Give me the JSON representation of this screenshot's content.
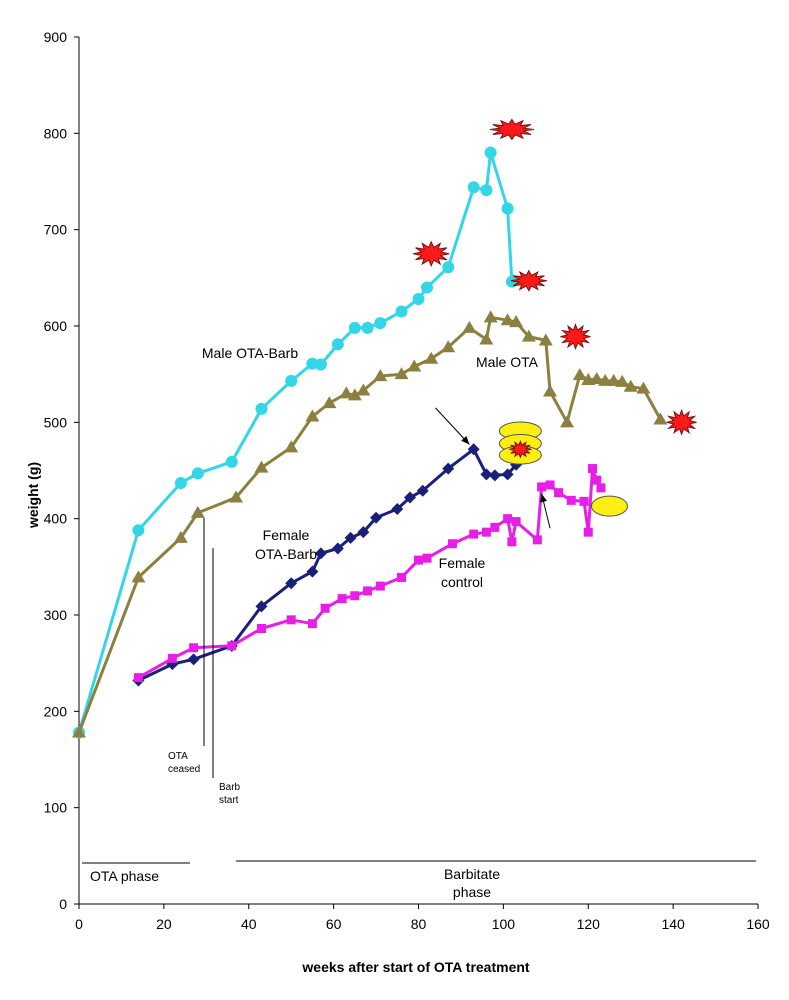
{
  "chart_data": {
    "type": "line",
    "xlabel": "weeks after start of OTA treatment",
    "ylabel": "weight (g)",
    "xlim": [
      0,
      160
    ],
    "ylim": [
      0,
      900
    ],
    "xticks": [
      0,
      20,
      40,
      60,
      80,
      100,
      120,
      140,
      160
    ],
    "yticks": [
      0,
      100,
      200,
      300,
      400,
      500,
      600,
      700,
      800,
      900
    ],
    "colors": {
      "male_ota_barb": "#33d6e6",
      "male_ota": "#8b8040",
      "female_ota_barb": "#1a1f7a",
      "female_control": "#e61ee6",
      "burst": "#ff1a1a",
      "ellipse": "#ffee11"
    },
    "series": [
      {
        "name": "Male OTA-Barb",
        "label_lines": [
          "Male OTA-Barb"
        ],
        "marker": "circle",
        "color_key": "male_ota_barb",
        "points": [
          [
            0,
            178
          ],
          [
            14,
            388
          ],
          [
            24,
            437
          ],
          [
            28,
            447
          ],
          [
            36,
            459
          ],
          [
            43,
            514
          ],
          [
            50,
            543
          ],
          [
            55,
            561
          ],
          [
            57,
            560
          ],
          [
            61,
            581
          ],
          [
            65,
            598
          ],
          [
            68,
            598
          ],
          [
            71,
            603
          ],
          [
            76,
            615
          ],
          [
            80,
            628
          ],
          [
            82,
            640
          ],
          [
            87,
            661
          ],
          [
            93,
            744
          ],
          [
            96,
            741
          ],
          [
            97,
            780
          ],
          [
            101,
            722
          ],
          [
            102,
            646
          ]
        ]
      },
      {
        "name": "Male OTA",
        "label_lines": [
          "Male OTA"
        ],
        "marker": "triangle",
        "color_key": "male_ota",
        "points": [
          [
            0,
            178
          ],
          [
            14,
            339
          ],
          [
            24,
            380
          ],
          [
            28,
            406
          ],
          [
            37,
            422
          ],
          [
            43,
            453
          ],
          [
            50,
            474
          ],
          [
            55,
            506
          ],
          [
            59,
            520
          ],
          [
            63,
            530
          ],
          [
            65,
            528
          ],
          [
            67,
            533
          ],
          [
            71,
            548
          ],
          [
            76,
            550
          ],
          [
            79,
            558
          ],
          [
            83,
            566
          ],
          [
            87,
            578
          ],
          [
            92,
            598
          ],
          [
            96,
            586
          ],
          [
            97,
            609
          ],
          [
            101,
            606
          ],
          [
            103,
            604
          ],
          [
            106,
            589
          ],
          [
            110,
            585
          ],
          [
            111,
            532
          ],
          [
            115,
            500
          ],
          [
            118,
            549
          ],
          [
            120,
            544
          ],
          [
            122,
            545
          ],
          [
            124,
            543
          ],
          [
            126,
            543
          ],
          [
            128,
            542
          ],
          [
            130,
            537
          ],
          [
            133,
            535
          ],
          [
            137,
            503
          ]
        ]
      },
      {
        "name": "Female OTA-Barb",
        "label_lines": [
          "Female",
          "OTA-Barb"
        ],
        "marker": "diamond",
        "color_key": "female_ota_barb",
        "points": [
          [
            14,
            232
          ],
          [
            22,
            249
          ],
          [
            27,
            254
          ],
          [
            36,
            268
          ],
          [
            43,
            309
          ],
          [
            50,
            333
          ],
          [
            55,
            345
          ],
          [
            57,
            364
          ],
          [
            61,
            369
          ],
          [
            64,
            380
          ],
          [
            67,
            386
          ],
          [
            70,
            401
          ],
          [
            75,
            410
          ],
          [
            78,
            422
          ],
          [
            81,
            429
          ],
          [
            87,
            452
          ],
          [
            93,
            472
          ],
          [
            96,
            446
          ],
          [
            98,
            445
          ],
          [
            101,
            446
          ],
          [
            103,
            456
          ]
        ]
      },
      {
        "name": "Female control",
        "label_lines": [
          "Female",
          "control"
        ],
        "marker": "square",
        "color_key": "female_control",
        "points": [
          [
            14,
            235
          ],
          [
            22,
            255
          ],
          [
            27,
            266
          ],
          [
            36,
            268
          ],
          [
            43,
            286
          ],
          [
            50,
            295
          ],
          [
            55,
            291
          ],
          [
            58,
            307
          ],
          [
            62,
            317
          ],
          [
            65,
            320
          ],
          [
            68,
            325
          ],
          [
            71,
            330
          ],
          [
            76,
            339
          ],
          [
            80,
            357
          ],
          [
            82,
            359
          ],
          [
            88,
            374
          ],
          [
            93,
            384
          ],
          [
            96,
            386
          ],
          [
            98,
            391
          ],
          [
            101,
            400
          ],
          [
            102,
            376
          ],
          [
            103,
            397
          ],
          [
            108,
            378
          ],
          [
            109,
            433
          ],
          [
            111,
            435
          ],
          [
            113,
            427
          ],
          [
            116,
            419
          ],
          [
            119,
            418
          ],
          [
            120,
            386
          ],
          [
            121,
            452
          ],
          [
            122,
            440
          ],
          [
            123,
            432
          ]
        ]
      }
    ],
    "annotations": {
      "ota_ceased": [
        "OTA",
        "ceased"
      ],
      "barb_start": [
        "Barb",
        "start"
      ],
      "phase_ota": [
        "OTA phase"
      ],
      "phase_barb": [
        "Barbitate",
        "phase"
      ]
    },
    "bursts": [
      [
        102,
        804
      ],
      [
        83,
        675
      ],
      [
        106,
        647
      ],
      [
        117,
        589
      ],
      [
        142,
        500
      ],
      [
        104,
        472
      ]
    ],
    "ellipses": [
      [
        104,
        491
      ],
      [
        104,
        478
      ],
      [
        104,
        466
      ],
      [
        125,
        413
      ]
    ],
    "arrows": [
      {
        "from": [
          84,
          515
        ],
        "to": [
          92,
          477
        ]
      },
      {
        "from": [
          111,
          390
        ],
        "to": [
          109,
          426
        ]
      }
    ]
  }
}
